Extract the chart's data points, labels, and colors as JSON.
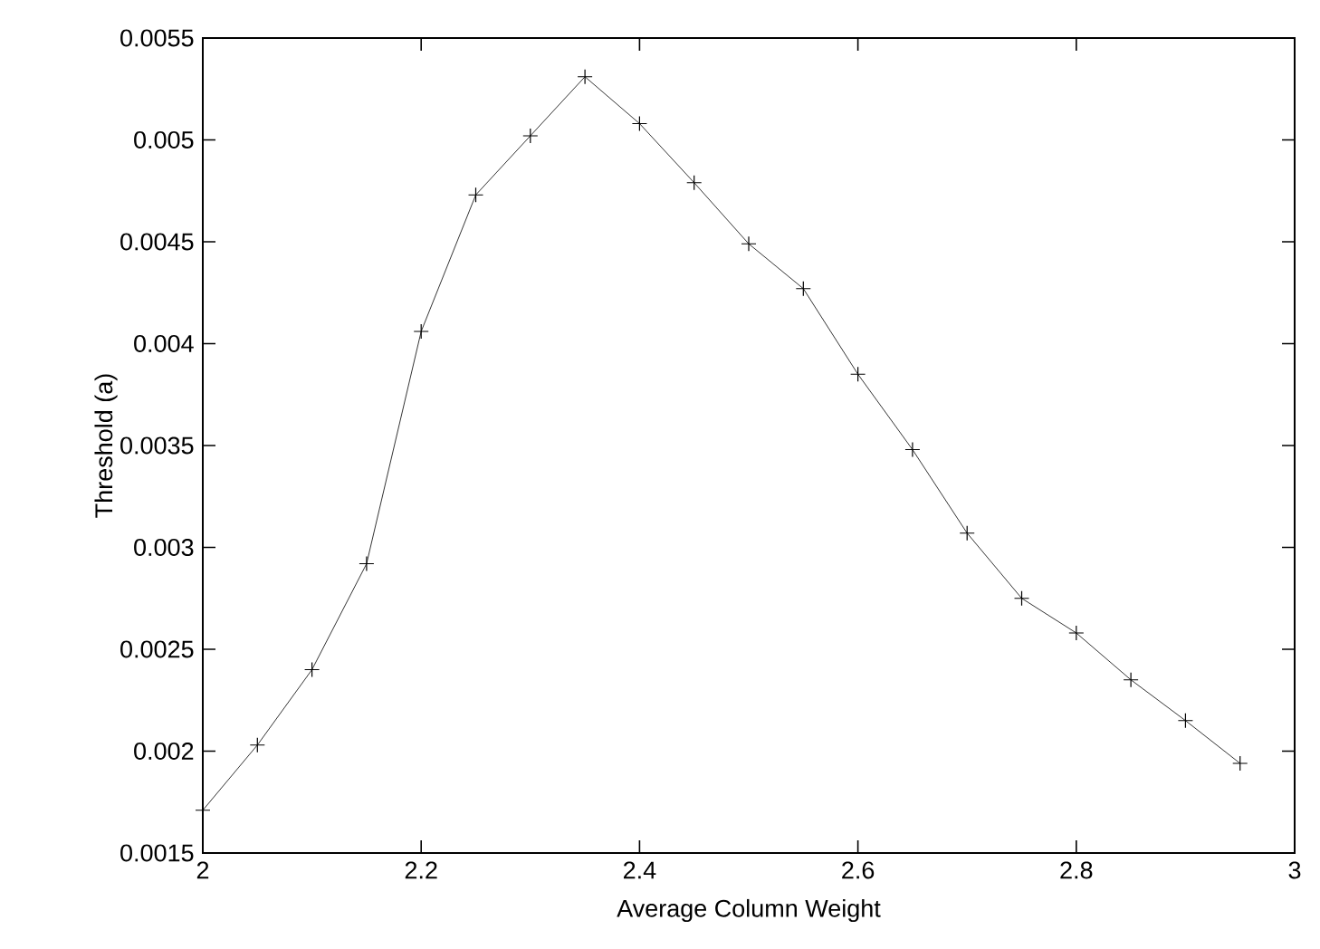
{
  "chart_data": {
    "type": "line",
    "xlabel": "Average Column Weight",
    "ylabel": "Threshold (a)",
    "x": [
      2.0,
      2.05,
      2.1,
      2.15,
      2.2,
      2.25,
      2.3,
      2.35,
      2.4,
      2.45,
      2.5,
      2.55,
      2.6,
      2.65,
      2.7,
      2.75,
      2.8,
      2.85,
      2.9,
      2.95
    ],
    "series": [
      {
        "color": "#000000",
        "values": [
          0.00171,
          0.00203,
          0.0024,
          0.00292,
          0.00406,
          0.00473,
          0.00502,
          0.00531,
          0.00508,
          0.00479,
          0.00449,
          0.00427,
          0.00385,
          0.00348,
          0.00307,
          0.00275,
          0.00258,
          0.00235,
          0.00215,
          0.00194
        ]
      }
    ],
    "xlim": [
      2,
      3
    ],
    "xticks": [
      2,
      2.2,
      2.4,
      2.6,
      2.8,
      3
    ],
    "ylim": [
      0.0015,
      0.0055
    ],
    "yticks": [
      0.0015,
      0.002,
      0.0025,
      0.003,
      0.0035,
      0.004,
      0.0045,
      0.005,
      0.0055
    ],
    "grid": false,
    "marker": "cross",
    "line_style": "solid"
  }
}
